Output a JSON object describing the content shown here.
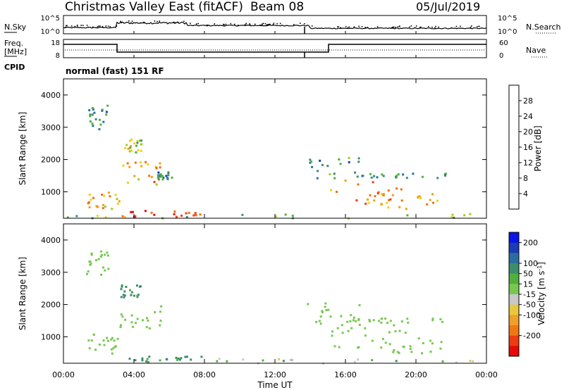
{
  "header": {
    "station": "Christmas Valley East (fitACF)",
    "beam": "Beam 08",
    "date": "05/Jul/2019"
  },
  "left_labels": {
    "nsky": "N.Sky",
    "freq_line1": "Freq.",
    "freq_line2": "[MHz]",
    "cpid": "CPID"
  },
  "right_labels": {
    "nsearch": "N.Search",
    "nave": "Nave"
  },
  "mode_text": "normal (fast) 151 RF",
  "noise_panel": {
    "left_ticks": [
      "10^5",
      "10^0"
    ],
    "right_ticks": [
      "10^5",
      "10^0"
    ]
  },
  "freq_panel": {
    "left_ticks": [
      "18",
      "8"
    ],
    "right_ticks": [
      "60",
      "0"
    ]
  },
  "x_axis": {
    "label": "Time UT",
    "ticks": [
      "00:00",
      "04:00",
      "08:00",
      "12:00",
      "16:00",
      "20:00",
      "00:00"
    ]
  },
  "colors": {
    "power": [
      "#0a14e6",
      "#1a3cb4",
      "#2a6ea0",
      "#3e8c6e",
      "#4fb040",
      "#a0cc20",
      "#f0d010",
      "#f0a010",
      "#f07010",
      "#f03c10",
      "#e60a0a"
    ],
    "velocity": [
      "#0a14e6",
      "#1a3cb4",
      "#2a6ea0",
      "#3e8c6e",
      "#50b03c",
      "#78c850",
      "#c8c8c8",
      "#e8c83c",
      "#f0a028",
      "#f07814",
      "#ee3c10",
      "#e60a0a"
    ]
  },
  "chart_data": [
    {
      "type": "heatmap",
      "title": "",
      "ylabel": "Slant Range [km]",
      "xlabel": "",
      "xlim": [
        0,
        24
      ],
      "ylim": [
        180,
        4500
      ],
      "yticks": [
        "4000",
        "3000",
        "2000",
        "1000"
      ],
      "colorbar_label": "Power [dB]",
      "colorbar_ticks": [
        "28",
        "24",
        "20",
        "16",
        "12",
        "8",
        "4"
      ],
      "colorbar_range": [
        0,
        32
      ],
      "regions": [
        {
          "t": [
            1.2,
            2.6
          ],
          "r": [
            2950,
            3700
          ],
          "v": 10
        },
        {
          "t": [
            3.2,
            4.4
          ],
          "r": [
            2250,
            2650
          ],
          "v": 16
        },
        {
          "t": [
            3.0,
            5.5
          ],
          "r": [
            1250,
            2000
          ],
          "v": 22
        },
        {
          "t": [
            5.3,
            6.3
          ],
          "r": [
            1400,
            1650
          ],
          "v": 10
        },
        {
          "t": [
            1.3,
            3.2
          ],
          "r": [
            500,
            1100
          ],
          "v": 22
        },
        {
          "t": [
            3.2,
            7.8
          ],
          "r": [
            250,
            450
          ],
          "v": 28
        },
        {
          "t": [
            13.8,
            16.8
          ],
          "r": [
            1400,
            2100
          ],
          "v": 10
        },
        {
          "t": [
            15.0,
            19.5
          ],
          "r": [
            600,
            1400
          ],
          "v": 24
        },
        {
          "t": [
            18.0,
            21.5
          ],
          "r": [
            500,
            1000
          ],
          "v": 22
        },
        {
          "t": [
            16.5,
            21.8
          ],
          "r": [
            1450,
            1600
          ],
          "v": 10
        },
        {
          "t": [
            0.0,
            24.0
          ],
          "r": [
            200,
            350
          ],
          "v": 14
        }
      ]
    },
    {
      "type": "heatmap",
      "title": "",
      "ylabel": "Slant Range [km]",
      "xlabel": "Time UT",
      "xlim": [
        0,
        24
      ],
      "ylim": [
        180,
        4500
      ],
      "yticks": [
        "4000",
        "3000",
        "2000",
        "1000"
      ],
      "colorbar_label": "Velocity [m s^-1]",
      "colorbar_ticks": [
        "200",
        "100",
        "50",
        "15",
        "-15",
        "-50",
        "-100",
        "-200"
      ],
      "colorbar_range": [
        -250,
        250
      ],
      "regions": [
        {
          "t": [
            1.2,
            2.6
          ],
          "r": [
            2950,
            3700
          ],
          "v": 0
        },
        {
          "t": [
            3.2,
            4.4
          ],
          "r": [
            2250,
            2650
          ],
          "v": 60
        },
        {
          "t": [
            3.0,
            5.5
          ],
          "r": [
            1250,
            2000
          ],
          "v": 0
        },
        {
          "t": [
            1.3,
            3.2
          ],
          "r": [
            500,
            1100
          ],
          "v": 0
        },
        {
          "t": [
            3.2,
            7.8
          ],
          "r": [
            250,
            450
          ],
          "v": 60
        },
        {
          "t": [
            13.8,
            16.8
          ],
          "r": [
            1400,
            2100
          ],
          "v": 0
        },
        {
          "t": [
            15.0,
            19.5
          ],
          "r": [
            600,
            1400
          ],
          "v": 0
        },
        {
          "t": [
            18.0,
            21.5
          ],
          "r": [
            500,
            1000
          ],
          "v": 0
        },
        {
          "t": [
            16.5,
            21.8
          ],
          "r": [
            1450,
            1600
          ],
          "v": 0
        },
        {
          "t": [
            8.0,
            24.0
          ],
          "r": [
            200,
            350
          ],
          "v": -40
        }
      ]
    }
  ]
}
